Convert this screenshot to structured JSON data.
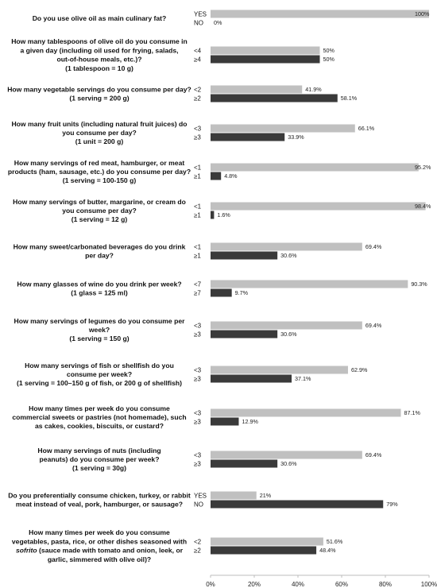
{
  "chart_data": {
    "type": "bar",
    "orientation": "horizontal",
    "xlim": [
      0,
      100
    ],
    "x_ticks": [
      "0%",
      "20%",
      "40%",
      "60%",
      "80%",
      "100%"
    ],
    "grid": false,
    "colors": {
      "first": "#c0c0c0",
      "second": "#3a3a3a"
    },
    "items": [
      {
        "question": [
          "Do you use olive oil as main culinary fat?"
        ],
        "options": [
          {
            "label": "YES",
            "value": 100,
            "value_label": "100%"
          },
          {
            "label": "NO",
            "value": 0,
            "value_label": "0%"
          }
        ]
      },
      {
        "question": [
          "How many tablespoons of olive oil do you consume in",
          "a given day (including oil used for frying, salads,",
          "out-of-house meals, etc.)?",
          "(1 tablespoon = 10 g)"
        ],
        "options": [
          {
            "label": "<4",
            "value": 50,
            "value_label": "50%"
          },
          {
            "label": "≥4",
            "value": 50,
            "value_label": "50%"
          }
        ]
      },
      {
        "question": [
          "How many vegetable servings do you consume per day?",
          "(1 serving = 200 g)"
        ],
        "options": [
          {
            "label": "<2",
            "value": 41.9,
            "value_label": "41.9%"
          },
          {
            "label": "≥2",
            "value": 58.1,
            "value_label": "58.1%"
          }
        ]
      },
      {
        "question": [
          "How many fruit units (including natural fruit juices) do",
          "you consume per day?",
          "(1 unit = 200 g)"
        ],
        "options": [
          {
            "label": "<3",
            "value": 66.1,
            "value_label": "66.1%"
          },
          {
            "label": "≥3",
            "value": 33.9,
            "value_label": "33.9%"
          }
        ]
      },
      {
        "question": [
          "How many servings of red meat, hamburger, or meat",
          "products (ham, sausage, etc.) do you consume per day?",
          "(1 serving = 100-150 g)"
        ],
        "options": [
          {
            "label": "<1",
            "value": 95.2,
            "value_label": "95.2%"
          },
          {
            "label": "≥1",
            "value": 4.8,
            "value_label": "4.8%"
          }
        ]
      },
      {
        "question": [
          "How many servings of butter, margarine, or cream do",
          "you consume per day?",
          "(1 serving = 12 g)"
        ],
        "options": [
          {
            "label": "<1",
            "value": 98.4,
            "value_label": "98.4%"
          },
          {
            "label": "≥1",
            "value": 1.6,
            "value_label": "1.6%"
          }
        ]
      },
      {
        "question": [
          "How many sweet/carbonated beverages do you drink",
          "per day?"
        ],
        "options": [
          {
            "label": "<1",
            "value": 69.4,
            "value_label": "69.4%"
          },
          {
            "label": "≥1",
            "value": 30.6,
            "value_label": "30.6%"
          }
        ]
      },
      {
        "question": [
          "How many glasses of wine do you drink per week?",
          "(1 glass = 125 ml)"
        ],
        "options": [
          {
            "label": "<7",
            "value": 90.3,
            "value_label": "90.3%"
          },
          {
            "label": "≥7",
            "value": 9.7,
            "value_label": "9.7%"
          }
        ]
      },
      {
        "question": [
          "How many servings of legumes do you consume per",
          "week?",
          "(1 serving = 150 g)"
        ],
        "options": [
          {
            "label": "<3",
            "value": 69.4,
            "value_label": "69.4%"
          },
          {
            "label": "≥3",
            "value": 30.6,
            "value_label": "30.6%"
          }
        ]
      },
      {
        "question": [
          "How many servings of fish or shellfish do you",
          "consume per week?",
          "(1 serving = 100–150 g of fish, or 200 g of shellfish)"
        ],
        "options": [
          {
            "label": "<3",
            "value": 62.9,
            "value_label": "62.9%"
          },
          {
            "label": "≥3",
            "value": 37.1,
            "value_label": "37.1%"
          }
        ]
      },
      {
        "question": [
          "How many times per week do you consume",
          "commercial sweets or pastries (not homemade), such",
          "as cakes, cookies, biscuits, or custard?"
        ],
        "options": [
          {
            "label": "<3",
            "value": 87.1,
            "value_label": "87.1%"
          },
          {
            "label": "≥3",
            "value": 12.9,
            "value_label": "12.9%"
          }
        ]
      },
      {
        "question": [
          "How many servings of nuts (including",
          "peanuts) do you consume per week?",
          "(1 serving = 30g)"
        ],
        "options": [
          {
            "label": "<3",
            "value": 69.4,
            "value_label": "69.4%"
          },
          {
            "label": "≥3",
            "value": 30.6,
            "value_label": "30.6%"
          }
        ]
      },
      {
        "question": [
          "Do you preferentially consume chicken, turkey, or rabbit",
          "meat instead of veal, pork, hamburger, or sausage?"
        ],
        "options": [
          {
            "label": "YES",
            "value": 21,
            "value_label": "21%"
          },
          {
            "label": "NO",
            "value": 79,
            "value_label": "79%"
          }
        ]
      },
      {
        "question": [
          "How many times per week do you consume",
          "vegetables, pasta, rice, or other dishes seasoned with",
          "sofrito (sauce made with tomato and onion, leek, or",
          "garlic, simmered with olive oil)?"
        ],
        "emphasis": "sofrito",
        "options": [
          {
            "label": "<2",
            "value": 51.6,
            "value_label": "51.6%"
          },
          {
            "label": "≥2",
            "value": 48.4,
            "value_label": "48.4%"
          }
        ]
      }
    ]
  }
}
